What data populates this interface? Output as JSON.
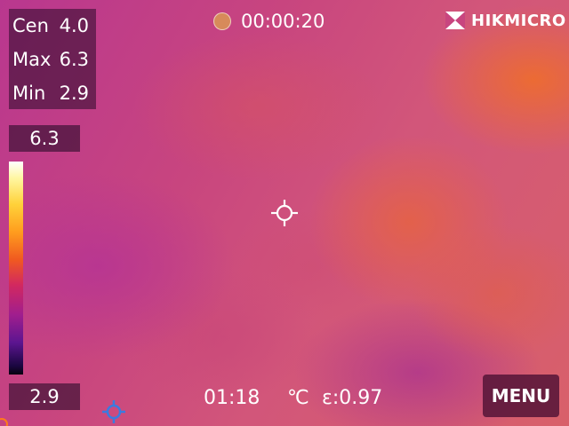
{
  "readout": {
    "center_label": "Cen",
    "center_value": "4.0",
    "max_label": "Max",
    "max_value": "6.3",
    "min_label": "Min",
    "min_value": "2.9"
  },
  "recording": {
    "timer": "00:00:20",
    "indicator_color": "#d78a5a"
  },
  "brand": {
    "name": "HIKMICRO",
    "icon": "hikmicro-logo-icon"
  },
  "scale": {
    "max": "6.3",
    "min": "2.9",
    "palette_icon": "ironbow-colorbar"
  },
  "status_bar": {
    "time": "01:18",
    "unit": "℃",
    "emissivity": "ε:0.97"
  },
  "menu": {
    "label": "MENU"
  },
  "icons": {
    "center_spot": "crosshair-icon",
    "spot_tool": "target-icon"
  }
}
